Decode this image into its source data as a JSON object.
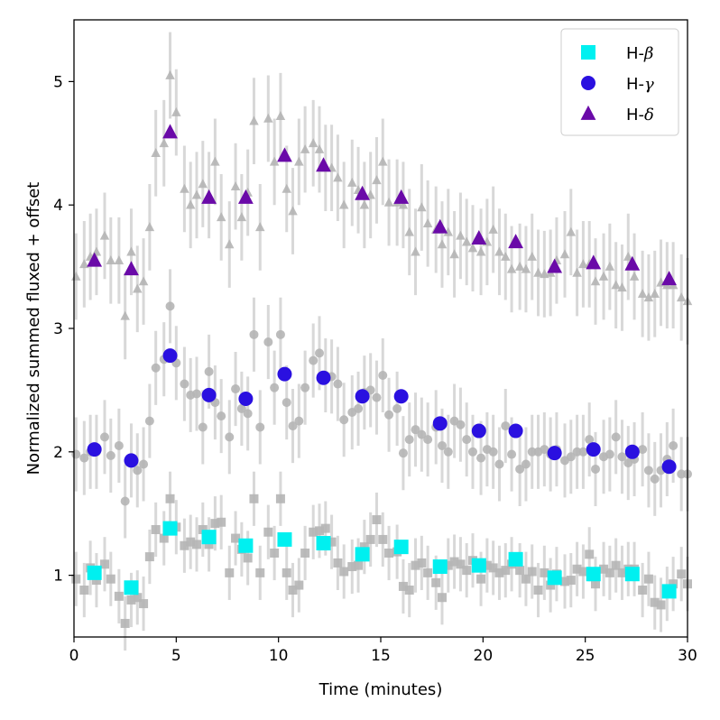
{
  "chart_data": {
    "type": "scatter",
    "title": "",
    "xlabel": "Time (minutes)",
    "ylabel": "Normalized summed fluxed + offset",
    "xlim": [
      0,
      30
    ],
    "ylim": [
      0.5,
      5.5
    ],
    "xticks": [
      0,
      5,
      10,
      15,
      20,
      25,
      30
    ],
    "yticks": [
      1,
      2,
      3,
      4,
      5
    ],
    "grid": false,
    "legend_position": "top-right",
    "colors": {
      "background_points": "#b5b5b5",
      "error_bars": "#d8d8d8",
      "h_beta": "#00f0f0",
      "h_gamma": "#2a10e0",
      "h_delta": "#6a0aa8"
    },
    "binned_series": [
      {
        "name": "H-β",
        "legend_prefix": "H-",
        "legend_greek": "β",
        "marker": "square",
        "x": [
          1.0,
          2.8,
          4.7,
          6.6,
          8.4,
          10.3,
          12.2,
          14.1,
          16.0,
          17.9,
          19.8,
          21.6,
          23.5,
          25.4,
          27.3,
          29.1
        ],
        "y": [
          1.02,
          0.9,
          1.38,
          1.31,
          1.24,
          1.29,
          1.26,
          1.17,
          1.23,
          1.07,
          1.08,
          1.13,
          0.98,
          1.01,
          1.01,
          0.87
        ]
      },
      {
        "name": "H-γ",
        "legend_prefix": "H-",
        "legend_greek": "γ",
        "marker": "circle",
        "x": [
          1.0,
          2.8,
          4.7,
          6.6,
          8.4,
          10.3,
          12.2,
          14.1,
          16.0,
          17.9,
          19.8,
          21.6,
          23.5,
          25.4,
          27.3,
          29.1
        ],
        "y": [
          2.02,
          1.93,
          2.78,
          2.46,
          2.43,
          2.63,
          2.6,
          2.45,
          2.45,
          2.23,
          2.17,
          2.17,
          1.99,
          2.02,
          2.0,
          1.88
        ]
      },
      {
        "name": "H-δ",
        "legend_prefix": "H-",
        "legend_greek": "δ",
        "marker": "triangle",
        "x": [
          1.0,
          2.8,
          4.7,
          6.6,
          8.4,
          10.3,
          12.2,
          14.1,
          16.0,
          17.9,
          19.8,
          21.6,
          23.5,
          25.4,
          27.3,
          29.1
        ],
        "y": [
          3.55,
          3.48,
          4.59,
          4.06,
          4.06,
          4.4,
          4.32,
          4.09,
          4.06,
          3.82,
          3.73,
          3.7,
          3.5,
          3.53,
          3.52,
          3.4
        ]
      }
    ],
    "raw_series": [
      {
        "name": "H-β raw",
        "marker": "square",
        "x": [
          0.1,
          0.5,
          0.8,
          1.1,
          1.5,
          1.8,
          2.2,
          2.5,
          2.8,
          3.1,
          3.4,
          3.7,
          4.0,
          4.4,
          4.7,
          5.0,
          5.4,
          5.7,
          6.0,
          6.3,
          6.6,
          6.9,
          7.2,
          7.6,
          7.9,
          8.2,
          8.5,
          8.8,
          9.1,
          9.5,
          9.8,
          10.1,
          10.4,
          10.7,
          11.0,
          11.3,
          11.7,
          12.0,
          12.3,
          12.6,
          12.9,
          13.2,
          13.6,
          13.9,
          14.2,
          14.5,
          14.8,
          15.1,
          15.4,
          15.8,
          16.1,
          16.4,
          16.7,
          17.0,
          17.3,
          17.7,
          18.0,
          18.3,
          18.6,
          18.9,
          19.2,
          19.5,
          19.9,
          20.2,
          20.5,
          20.8,
          21.1,
          21.4,
          21.8,
          22.1,
          22.4,
          22.7,
          23.0,
          23.3,
          23.6,
          24.0,
          24.3,
          24.6,
          24.9,
          25.2,
          25.5,
          25.9,
          26.2,
          26.5,
          26.8,
          27.1,
          27.4,
          27.8,
          28.1,
          28.4,
          28.7,
          29.0,
          29.3,
          29.7,
          30.0
        ],
        "y": [
          0.97,
          0.88,
          1.06,
          0.96,
          1.09,
          0.97,
          0.83,
          0.61,
          0.8,
          0.82,
          0.77,
          1.15,
          1.37,
          1.3,
          1.62,
          1.39,
          1.24,
          1.27,
          1.25,
          1.37,
          1.25,
          1.42,
          1.43,
          1.02,
          1.3,
          1.21,
          1.14,
          1.62,
          1.02,
          1.35,
          1.18,
          1.62,
          1.02,
          0.88,
          0.92,
          1.18,
          1.35,
          1.36,
          1.38,
          1.27,
          1.1,
          1.03,
          1.07,
          1.08,
          1.23,
          1.29,
          1.45,
          1.29,
          1.18,
          1.19,
          0.91,
          0.88,
          1.08,
          1.1,
          1.02,
          0.94,
          0.82,
          1.08,
          1.11,
          1.09,
          1.04,
          1.12,
          0.97,
          1.08,
          1.06,
          1.02,
          1.04,
          1.09,
          1.04,
          0.97,
          1.03,
          0.88,
          1.02,
          0.92,
          1.01,
          0.95,
          0.96,
          1.05,
          1.03,
          1.17,
          0.93,
          1.05,
          1.02,
          1.08,
          1.02,
          1.05,
          1.05,
          0.88,
          0.97,
          0.78,
          0.76,
          0.85,
          0.93,
          1.01,
          0.93
        ]
      },
      {
        "name": "H-γ raw",
        "marker": "circle",
        "x": [
          0.1,
          0.5,
          0.8,
          1.1,
          1.5,
          1.8,
          2.2,
          2.5,
          2.8,
          3.1,
          3.4,
          3.7,
          4.0,
          4.4,
          4.7,
          5.0,
          5.4,
          5.7,
          6.0,
          6.3,
          6.6,
          6.9,
          7.2,
          7.6,
          7.9,
          8.2,
          8.5,
          8.8,
          9.1,
          9.5,
          9.8,
          10.1,
          10.4,
          10.7,
          11.0,
          11.3,
          11.7,
          12.0,
          12.3,
          12.6,
          12.9,
          13.2,
          13.6,
          13.9,
          14.2,
          14.5,
          14.8,
          15.1,
          15.4,
          15.8,
          16.1,
          16.4,
          16.7,
          17.0,
          17.3,
          17.7,
          18.0,
          18.3,
          18.6,
          18.9,
          19.2,
          19.5,
          19.9,
          20.2,
          20.5,
          20.8,
          21.1,
          21.4,
          21.8,
          22.1,
          22.4,
          22.7,
          23.0,
          23.3,
          23.6,
          24.0,
          24.3,
          24.6,
          24.9,
          25.2,
          25.5,
          25.9,
          26.2,
          26.5,
          26.8,
          27.1,
          27.4,
          27.8,
          28.1,
          28.4,
          28.7,
          29.0,
          29.3,
          29.7,
          30.0
        ],
        "y": [
          1.98,
          1.95,
          2.0,
          2.0,
          2.12,
          1.97,
          2.05,
          1.6,
          1.93,
          1.85,
          1.9,
          2.25,
          2.68,
          2.75,
          3.18,
          2.72,
          2.55,
          2.46,
          2.47,
          2.2,
          2.65,
          2.4,
          2.29,
          2.12,
          2.51,
          2.35,
          2.31,
          2.95,
          2.2,
          2.89,
          2.52,
          2.95,
          2.4,
          2.21,
          2.25,
          2.52,
          2.74,
          2.8,
          2.62,
          2.61,
          2.55,
          2.26,
          2.32,
          2.35,
          2.48,
          2.5,
          2.44,
          2.62,
          2.3,
          2.35,
          1.99,
          2.1,
          2.18,
          2.14,
          2.1,
          2.2,
          2.05,
          2.0,
          2.25,
          2.22,
          2.1,
          2.0,
          1.95,
          2.02,
          2.0,
          1.9,
          2.21,
          1.98,
          1.86,
          1.9,
          2.0,
          2.0,
          2.02,
          1.98,
          2.02,
          1.93,
          1.96,
          2.0,
          2.0,
          2.1,
          1.86,
          1.96,
          1.98,
          2.12,
          1.96,
          1.91,
          1.94,
          2.02,
          1.85,
          1.78,
          1.85,
          1.94,
          2.05,
          1.82,
          1.82
        ]
      },
      {
        "name": "H-δ raw",
        "marker": "triangle",
        "x": [
          0.1,
          0.5,
          0.8,
          1.1,
          1.5,
          1.8,
          2.2,
          2.5,
          2.8,
          3.1,
          3.4,
          3.7,
          4.0,
          4.4,
          4.7,
          5.0,
          5.4,
          5.7,
          6.0,
          6.3,
          6.6,
          6.9,
          7.2,
          7.6,
          7.9,
          8.2,
          8.5,
          8.8,
          9.1,
          9.5,
          9.8,
          10.1,
          10.4,
          10.7,
          11.0,
          11.3,
          11.7,
          12.0,
          12.3,
          12.6,
          12.9,
          13.2,
          13.6,
          13.9,
          14.2,
          14.5,
          14.8,
          15.1,
          15.4,
          15.8,
          16.1,
          16.4,
          16.7,
          17.0,
          17.3,
          17.7,
          18.0,
          18.3,
          18.6,
          18.9,
          19.2,
          19.5,
          19.9,
          20.2,
          20.5,
          20.8,
          21.1,
          21.4,
          21.8,
          22.1,
          22.4,
          22.7,
          23.0,
          23.3,
          23.6,
          24.0,
          24.3,
          24.6,
          24.9,
          25.2,
          25.5,
          25.9,
          26.2,
          26.5,
          26.8,
          27.1,
          27.4,
          27.8,
          28.1,
          28.4,
          28.7,
          29.0,
          29.3,
          29.7,
          30.0
        ],
        "y": [
          3.42,
          3.52,
          3.58,
          3.62,
          3.75,
          3.55,
          3.55,
          3.1,
          3.62,
          3.32,
          3.38,
          3.82,
          4.42,
          4.5,
          5.05,
          4.75,
          4.13,
          4.0,
          4.08,
          4.17,
          4.08,
          4.35,
          3.9,
          3.68,
          4.15,
          3.9,
          4.1,
          4.68,
          3.82,
          4.7,
          4.35,
          4.72,
          4.13,
          3.95,
          4.35,
          4.45,
          4.5,
          4.45,
          4.3,
          4.3,
          4.22,
          4.0,
          4.18,
          4.12,
          4.0,
          4.08,
          4.2,
          4.35,
          4.02,
          4.02,
          4.0,
          3.78,
          3.62,
          3.98,
          3.85,
          3.8,
          3.68,
          3.78,
          3.6,
          3.75,
          3.7,
          3.65,
          3.62,
          3.7,
          3.8,
          3.62,
          3.58,
          3.48,
          3.5,
          3.48,
          3.58,
          3.45,
          3.44,
          3.45,
          3.55,
          3.6,
          3.78,
          3.45,
          3.52,
          3.52,
          3.38,
          3.42,
          3.5,
          3.35,
          3.33,
          3.58,
          3.42,
          3.28,
          3.25,
          3.28,
          3.37,
          3.35,
          3.35,
          3.25,
          3.22
        ]
      }
    ],
    "error_bar_half_widths": [
      0.22,
      0.3,
      0.35
    ]
  }
}
